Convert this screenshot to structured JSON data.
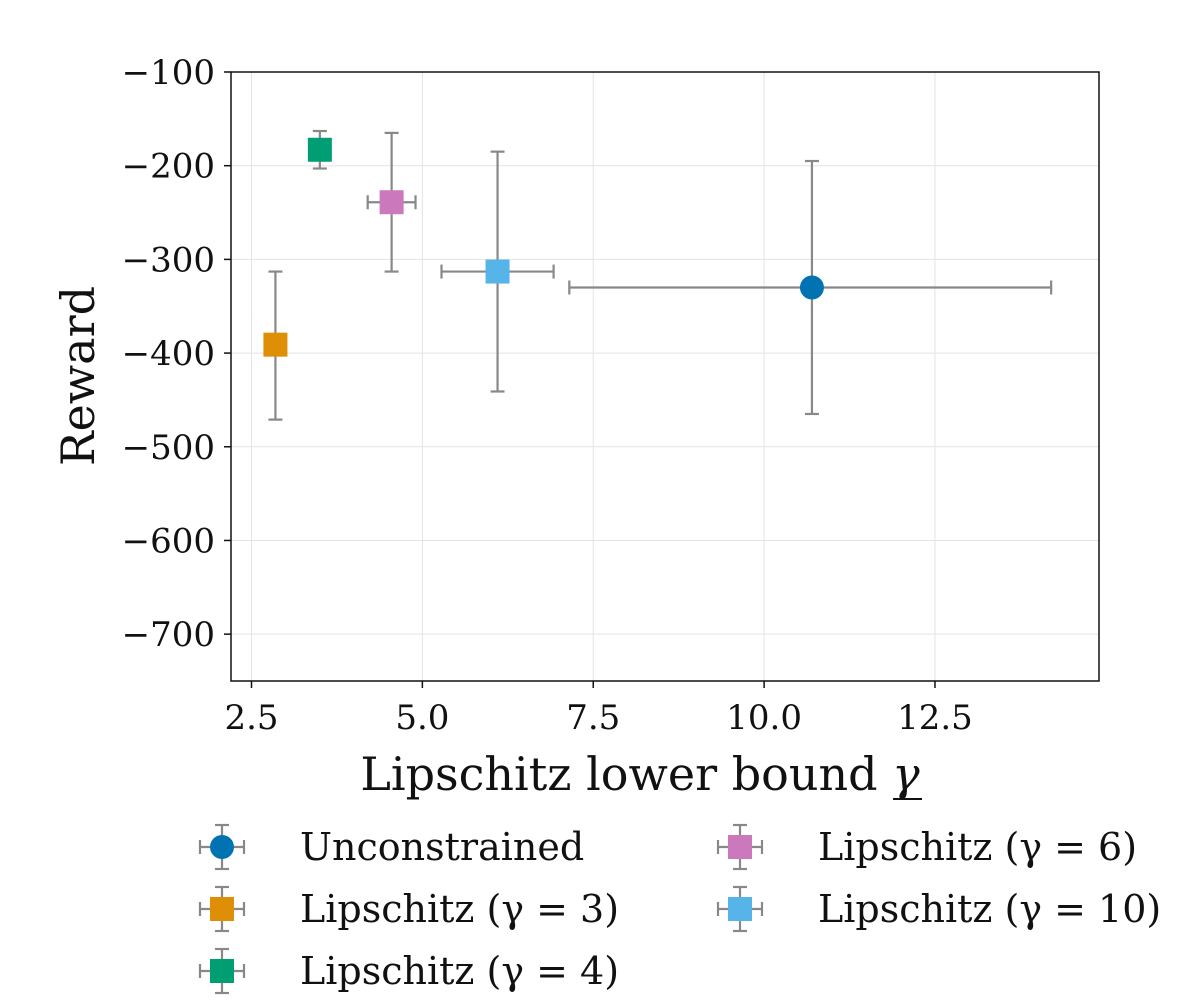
{
  "chart_data": {
    "type": "scatter",
    "title": "",
    "xlabel": "Lipschitz lower bound",
    "xlabel_symbol": "γ",
    "ylabel": "Reward",
    "xlim": [
      2.2,
      14.9
    ],
    "ylim": [
      -750,
      -100
    ],
    "xticks": [
      2.5,
      5.0,
      7.5,
      10.0,
      12.5
    ],
    "xtick_labels": [
      "2.5",
      "5.0",
      "7.5",
      "10.0",
      "12.5"
    ],
    "yticks": [
      -100,
      -200,
      -300,
      -400,
      -500,
      -600,
      -700
    ],
    "ytick_labels": [
      "−100",
      "−200",
      "−300",
      "−400",
      "−500",
      "−600",
      "−700"
    ],
    "grid": true,
    "legend_position": "below",
    "series": [
      {
        "name": "Unconstrained",
        "key": "unconstrained",
        "marker": "circle",
        "color": "#0173b2",
        "x": 10.7,
        "y": -330,
        "x_err": [
          3.55,
          3.5
        ],
        "y_err": [
          135,
          135
        ]
      },
      {
        "name": "Lipschitz (γ = 3)",
        "key": "gamma-3",
        "marker": "square",
        "color": "#de8f05",
        "x": 2.85,
        "y": -391,
        "x_err": [
          0,
          0
        ],
        "y_err": [
          80,
          78
        ]
      },
      {
        "name": "Lipschitz (γ = 4)",
        "key": "gamma-4",
        "marker": "square",
        "color": "#029e73",
        "x": 3.5,
        "y": -183,
        "x_err": [
          0,
          0
        ],
        "y_err": [
          20,
          20
        ]
      },
      {
        "name": "Lipschitz (γ = 6)",
        "key": "gamma-6",
        "marker": "square",
        "color": "#cc78bc",
        "x": 4.55,
        "y": -239,
        "x_err": [
          0.35,
          0.35
        ],
        "y_err": [
          74,
          74
        ]
      },
      {
        "name": "Lipschitz (γ = 10)",
        "key": "gamma-10",
        "marker": "square",
        "color": "#56b4e9",
        "x": 6.1,
        "y": -313,
        "x_err": [
          0.82,
          0.82
        ],
        "y_err": [
          128,
          128
        ]
      }
    ]
  }
}
